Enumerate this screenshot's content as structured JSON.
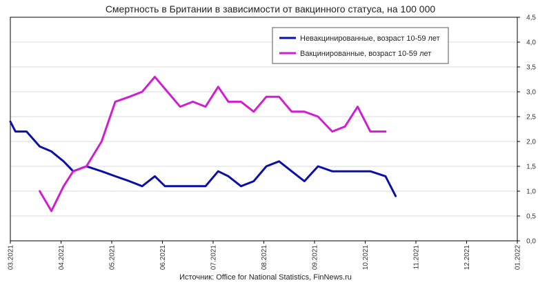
{
  "chart_data": {
    "type": "line",
    "title": "Смертность в Британии в зависимости от вакцинного статуса, на 100 000",
    "source": "Источник: Office for National Statistics, FinNews.ru",
    "y_axis_position": "right",
    "ylim": [
      0,
      4.5
    ],
    "y_ticks": [
      "0,0",
      "0,5",
      "1,0",
      "1,5",
      "2,0",
      "2,5",
      "3,0",
      "3,5",
      "4,0",
      "4,5"
    ],
    "x_ticks": [
      "03.2021",
      "04.2021",
      "05.2021",
      "06.2021",
      "07.2021",
      "08.2021",
      "09.2021",
      "10.2021",
      "11.2021",
      "12.2021",
      "01.2022"
    ],
    "xlim": [
      0,
      10
    ],
    "grid": "horizontal",
    "legend_position": "top-right",
    "series": [
      {
        "name": "Невакцинированные, возраст 10-59 лет",
        "color": "#0a0fa8",
        "points": [
          [
            0.0,
            2.4
          ],
          [
            0.1,
            2.2
          ],
          [
            0.32,
            2.2
          ],
          [
            0.58,
            1.9
          ],
          [
            0.81,
            1.8
          ],
          [
            1.05,
            1.6
          ],
          [
            1.24,
            1.4
          ],
          [
            1.5,
            1.5
          ],
          [
            1.8,
            1.4
          ],
          [
            2.07,
            1.3
          ],
          [
            2.35,
            1.2
          ],
          [
            2.6,
            1.1
          ],
          [
            2.85,
            1.3
          ],
          [
            3.05,
            1.1
          ],
          [
            3.35,
            1.1
          ],
          [
            3.6,
            1.1
          ],
          [
            3.85,
            1.1
          ],
          [
            4.1,
            1.4
          ],
          [
            4.3,
            1.3
          ],
          [
            4.55,
            1.1
          ],
          [
            4.8,
            1.2
          ],
          [
            5.05,
            1.5
          ],
          [
            5.3,
            1.6
          ],
          [
            5.55,
            1.4
          ],
          [
            5.8,
            1.2
          ],
          [
            6.07,
            1.5
          ],
          [
            6.35,
            1.4
          ],
          [
            6.6,
            1.4
          ],
          [
            6.85,
            1.4
          ],
          [
            7.1,
            1.4
          ],
          [
            7.4,
            1.3
          ],
          [
            7.6,
            0.9
          ]
        ]
      },
      {
        "name": "Вакцинированные, возраст 10-59 лет",
        "color": "#d11dd1",
        "points": [
          [
            0.58,
            1.0
          ],
          [
            0.81,
            0.6
          ],
          [
            1.05,
            1.1
          ],
          [
            1.24,
            1.4
          ],
          [
            1.5,
            1.5
          ],
          [
            1.8,
            2.0
          ],
          [
            2.07,
            2.8
          ],
          [
            2.35,
            2.9
          ],
          [
            2.6,
            3.0
          ],
          [
            2.85,
            3.3
          ],
          [
            3.1,
            3.0
          ],
          [
            3.35,
            2.7
          ],
          [
            3.6,
            2.8
          ],
          [
            3.85,
            2.7
          ],
          [
            4.1,
            3.1
          ],
          [
            4.3,
            2.8
          ],
          [
            4.55,
            2.8
          ],
          [
            4.8,
            2.6
          ],
          [
            5.05,
            2.9
          ],
          [
            5.3,
            2.9
          ],
          [
            5.55,
            2.6
          ],
          [
            5.8,
            2.6
          ],
          [
            6.07,
            2.5
          ],
          [
            6.35,
            2.2
          ],
          [
            6.6,
            2.3
          ],
          [
            6.85,
            2.7
          ],
          [
            7.1,
            2.2
          ],
          [
            7.4,
            2.2
          ]
        ]
      }
    ]
  }
}
